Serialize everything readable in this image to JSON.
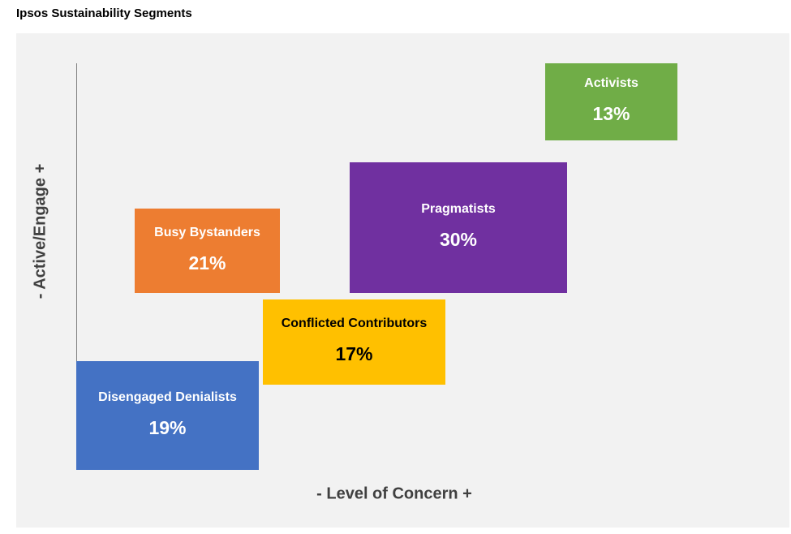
{
  "chart_data": {
    "type": "matrix",
    "title": "Ipsos Sustainability Segments",
    "xlabel": "- Level of Concern +",
    "ylabel": "- Active/Engage +",
    "segments": [
      {
        "name": "Disengaged Denialists",
        "value": "19%",
        "color": "#4472c4",
        "text_color": "#ffffff"
      },
      {
        "name": "Conflicted Contributors",
        "value": "17%",
        "color": "#ffc000",
        "text_color": "#000000"
      },
      {
        "name": "Busy Bystanders",
        "value": "21%",
        "color": "#ed7d31",
        "text_color": "#ffffff"
      },
      {
        "name": "Pragmatists",
        "value": "30%",
        "color": "#7030a0",
        "text_color": "#ffffff"
      },
      {
        "name": "Activists",
        "value": "13%",
        "color": "#70ad47",
        "text_color": "#ffffff"
      }
    ]
  }
}
